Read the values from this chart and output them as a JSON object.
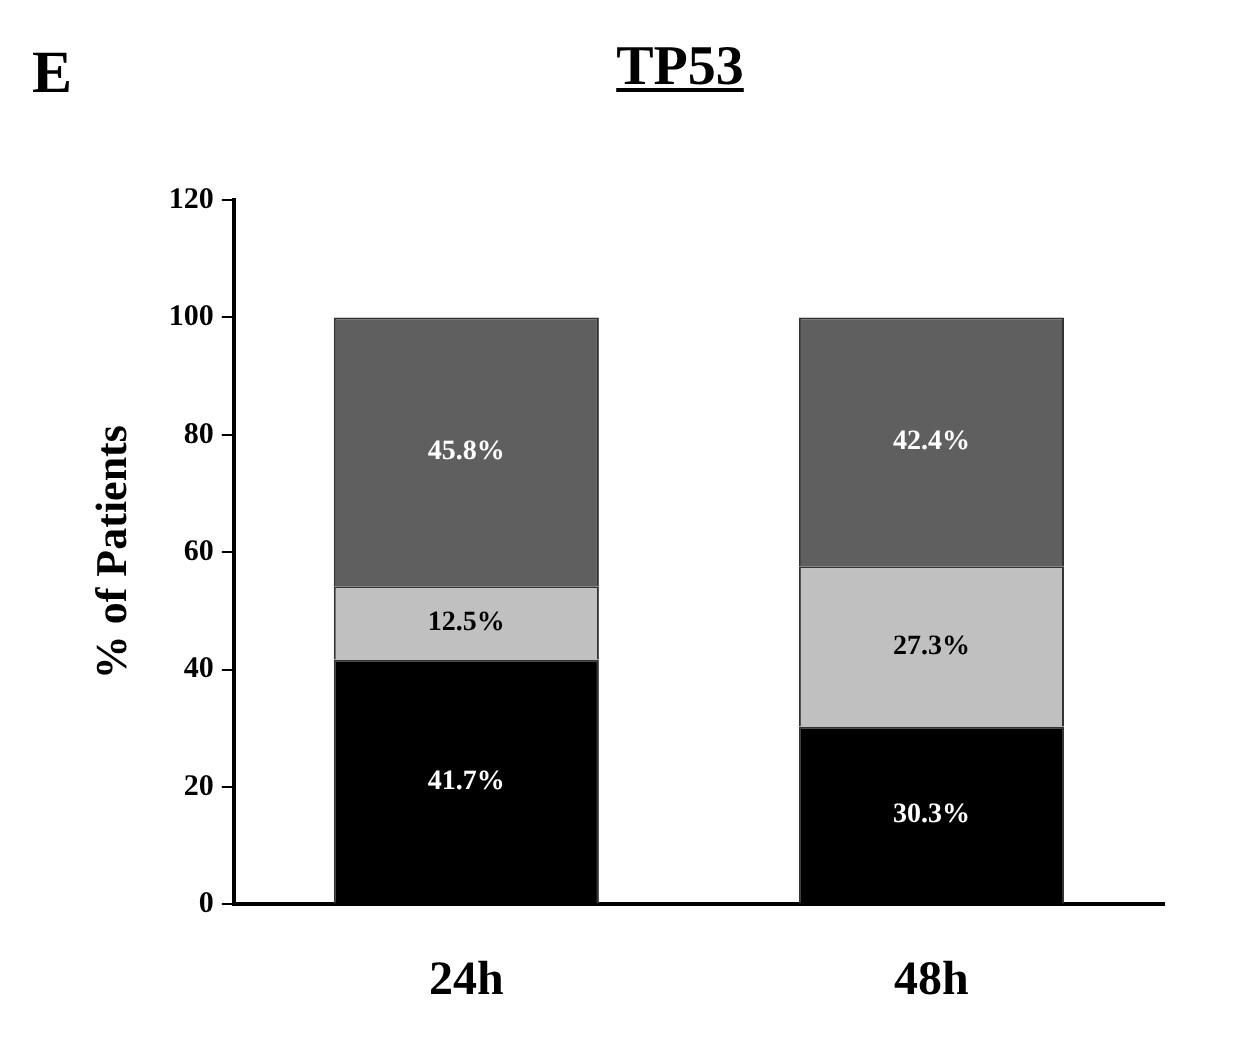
{
  "chart_data": {
    "type": "bar",
    "title": "TP53",
    "ylabel": "% of Patients",
    "annotations": [
      "E"
    ],
    "categories": [
      "24h",
      "48h"
    ],
    "stacked": true,
    "ylim": [
      0,
      120
    ],
    "yticks": [
      0,
      20,
      40,
      60,
      80,
      100,
      120
    ],
    "series": [
      {
        "color": "#000000",
        "values": [
          41.7,
          30.3
        ],
        "value_labels": [
          "41.7%",
          "30.3%"
        ]
      },
      {
        "color": "#c0c0c0",
        "values": [
          12.5,
          27.3
        ],
        "value_labels": [
          "12.5%",
          "27.3%"
        ]
      },
      {
        "color": "#5f5f5f",
        "values": [
          45.8,
          42.4
        ],
        "value_labels": [
          "45.8%",
          "42.4%"
        ]
      }
    ]
  }
}
